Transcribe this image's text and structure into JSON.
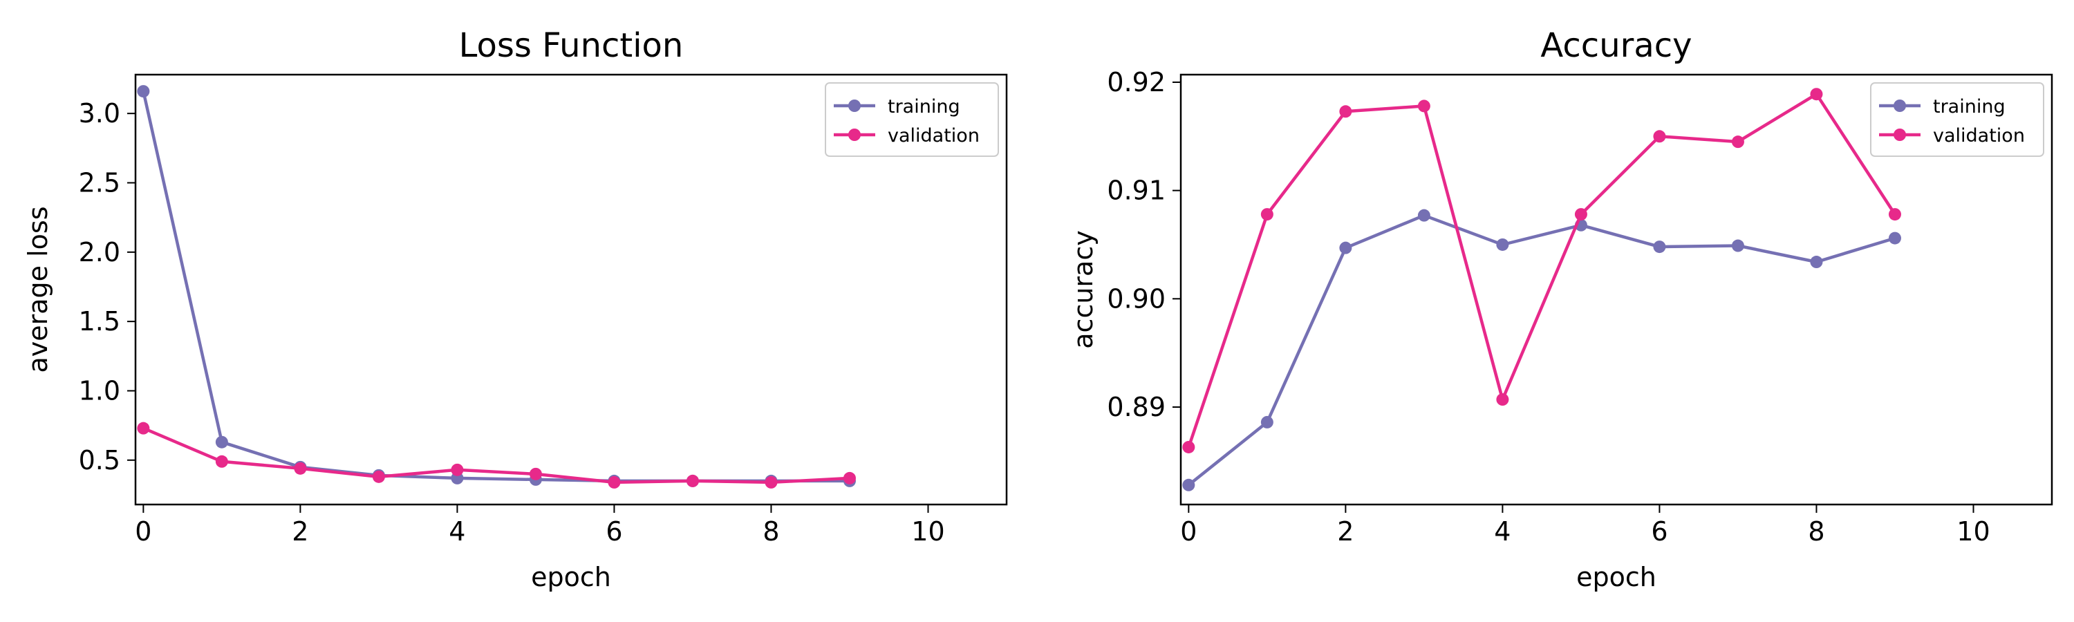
{
  "colors": {
    "training": "#7570b3",
    "validation": "#e7298a"
  },
  "chart_data": [
    {
      "type": "line",
      "title": "Loss Function",
      "xlabel": "epoch",
      "ylabel": "average loss",
      "xlim": [
        -0.1,
        11
      ],
      "ylim": [
        0.18,
        3.28
      ],
      "xticks": [
        0,
        2,
        4,
        6,
        8,
        10
      ],
      "yticks": [
        0.5,
        1.0,
        1.5,
        2.0,
        2.5,
        3.0
      ],
      "ytick_labels": [
        "0.5",
        "1.0",
        "1.5",
        "2.0",
        "2.5",
        "3.0"
      ],
      "legend_position": "top-right",
      "x": [
        0,
        1,
        2,
        3,
        4,
        5,
        6,
        7,
        8,
        9
      ],
      "series": [
        {
          "name": "training",
          "color_key": "training",
          "values": [
            3.16,
            0.63,
            0.45,
            0.39,
            0.37,
            0.36,
            0.35,
            0.35,
            0.35,
            0.35
          ]
        },
        {
          "name": "validation",
          "color_key": "validation",
          "values": [
            0.73,
            0.49,
            0.44,
            0.38,
            0.43,
            0.4,
            0.34,
            0.35,
            0.34,
            0.37
          ]
        }
      ]
    },
    {
      "type": "line",
      "title": "Accuracy",
      "xlabel": "epoch",
      "ylabel": "accuracy",
      "xlim": [
        -0.1,
        11
      ],
      "ylim": [
        0.881,
        0.9207
      ],
      "xticks": [
        0,
        2,
        4,
        6,
        8,
        10
      ],
      "yticks": [
        0.89,
        0.9,
        0.91,
        0.92
      ],
      "ytick_labels": [
        "0.89",
        "0.90",
        "0.91",
        "0.92"
      ],
      "legend_position": "top-right",
      "x": [
        0,
        1,
        2,
        3,
        4,
        5,
        6,
        7,
        8,
        9
      ],
      "series": [
        {
          "name": "training",
          "color_key": "training",
          "values": [
            0.8828,
            0.8886,
            0.9047,
            0.9077,
            0.905,
            0.9068,
            0.9048,
            0.9049,
            0.9034,
            0.9056
          ]
        },
        {
          "name": "validation",
          "color_key": "validation",
          "values": [
            0.8863,
            0.9078,
            0.9173,
            0.9178,
            0.8907,
            0.9078,
            0.915,
            0.9145,
            0.9189,
            0.9078
          ]
        }
      ]
    }
  ]
}
